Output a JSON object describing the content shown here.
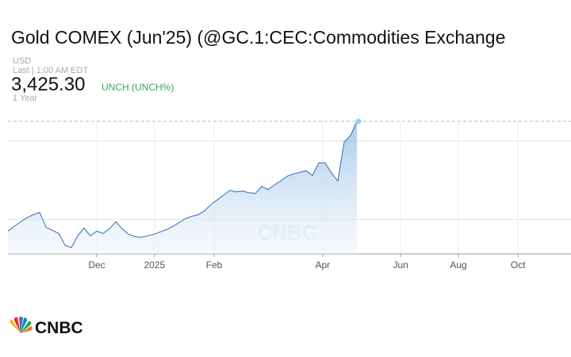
{
  "header": {
    "title": "Gold COMEX (Jun'25) (@GC.1:CEC:Commodities Exchange",
    "currency": "USD",
    "last_time": "Last | 1:00 AM EDT",
    "price": 3425.3,
    "price_label": "3,425.30",
    "change": "UNCH (UNCH%)",
    "range": "1 Year"
  },
  "chart_data": {
    "type": "line",
    "color": "#2f6db5",
    "watermark": "CNBC",
    "values": [
      2725,
      2755,
      2785,
      2810,
      2830,
      2845,
      2750,
      2730,
      2710,
      2635,
      2620,
      2695,
      2745,
      2695,
      2725,
      2710,
      2740,
      2785,
      2740,
      2705,
      2690,
      2685,
      2695,
      2705,
      2720,
      2735,
      2755,
      2780,
      2805,
      2820,
      2830,
      2855,
      2895,
      2925,
      2955,
      2985,
      2975,
      2980,
      2970,
      2965,
      3010,
      2990,
      3020,
      3045,
      3075,
      3090,
      3100,
      3110,
      3080,
      3160,
      3160,
      3095,
      3045,
      3295,
      3335,
      3425.3
    ],
    "xlim": [
      0,
      88.75
    ],
    "xticks": [
      {
        "value": 14,
        "label": "Dec"
      },
      {
        "value": 23.1,
        "label": "2025"
      },
      {
        "value": 32.5,
        "label": "Feb"
      },
      {
        "value": 49.6,
        "label": "Apr"
      },
      {
        "value": 61.9,
        "label": "Jun"
      },
      {
        "value": 71,
        "label": "Aug"
      },
      {
        "value": 80.4,
        "label": "Oct"
      }
    ],
    "ylim": [
      2580,
      3440
    ],
    "yticks": [
      2800,
      3300
    ],
    "ytick_labels": false,
    "grid": true
  },
  "footer": {
    "logo": "CNBC"
  }
}
